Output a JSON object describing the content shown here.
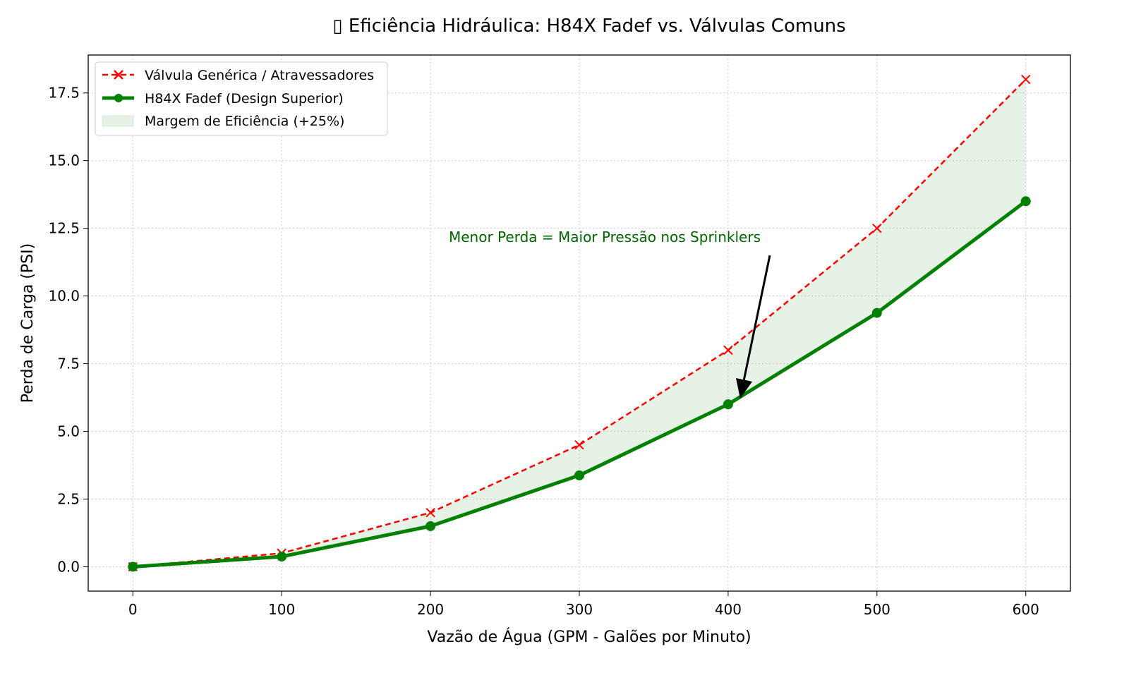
{
  "chart_data": {
    "type": "line",
    "title": "▯ Eficiência Hidráulica: H84X Fadef vs. Válvulas Comuns",
    "xlabel": "Vazão de Água (GPM - Galões por Minuto)",
    "ylabel": "Perda de Carga (PSI)",
    "x": [
      0,
      100,
      200,
      300,
      400,
      500,
      600
    ],
    "xlim": [
      -30,
      630
    ],
    "ylim": [
      -0.9,
      18.9
    ],
    "xticks": [
      "0",
      "100",
      "200",
      "300",
      "400",
      "500",
      "600"
    ],
    "xtick_values": [
      0,
      100,
      200,
      300,
      400,
      500,
      600
    ],
    "yticks": [
      "0.0",
      "2.5",
      "5.0",
      "7.5",
      "10.0",
      "12.5",
      "15.0",
      "17.5"
    ],
    "ytick_values": [
      0,
      2.5,
      5,
      7.5,
      10,
      12.5,
      15,
      17.5
    ],
    "grid": true,
    "legend_position": "top-left",
    "series": [
      {
        "name": "Válvula Genérica / Atravessadores",
        "values": [
          0,
          0.5,
          2,
          4.5,
          8,
          12.5,
          18
        ],
        "color": "#ff0000",
        "style": "dashed",
        "marker": "x"
      },
      {
        "name": "H84X Fadef (Design Superior)",
        "values": [
          0,
          0.375,
          1.5,
          3.375,
          6,
          9.375,
          13.5
        ],
        "color": "#008000",
        "style": "solid",
        "marker": "o"
      }
    ],
    "fill": {
      "name": "Margem de Eficiência (+25%)",
      "color": "#008000",
      "alpha": 0.1
    },
    "annotation": {
      "text": "Menor Perda = Maior Pressão nos Sprinklers",
      "point": [
        400,
        6
      ],
      "text_anchor_data": [
        400,
        12.2
      ],
      "color": "#006400"
    }
  }
}
